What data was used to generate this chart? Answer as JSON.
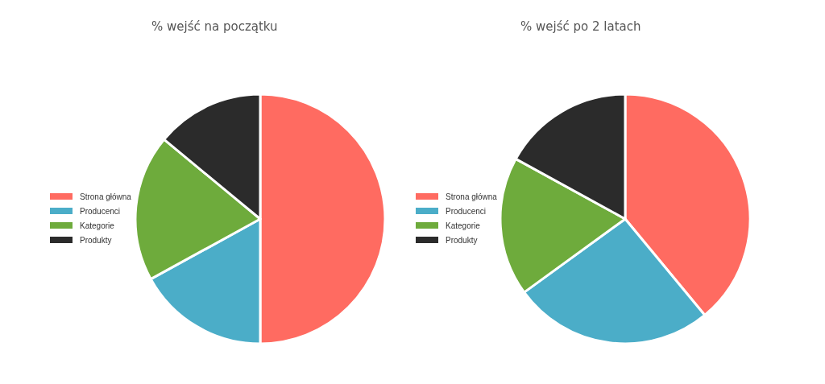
{
  "chart_data": [
    {
      "type": "pie",
      "title": "% wejść na początku",
      "categories": [
        "Strona główna",
        "Producenci",
        "Kategorie",
        "Produkty"
      ],
      "values": [
        50,
        17,
        19,
        14
      ],
      "colors": [
        "#ff6b61",
        "#4badc8",
        "#6eab3c",
        "#2b2b2b"
      ],
      "legend": "left"
    },
    {
      "type": "pie",
      "title": "% wejść po 2 latach",
      "categories": [
        "Strona główna",
        "Producenci",
        "Kategorie",
        "Produkty"
      ],
      "values": [
        39,
        26,
        18,
        17
      ],
      "colors": [
        "#ff6b61",
        "#4badc8",
        "#6eab3c",
        "#2b2b2b"
      ],
      "legend": "left"
    }
  ]
}
